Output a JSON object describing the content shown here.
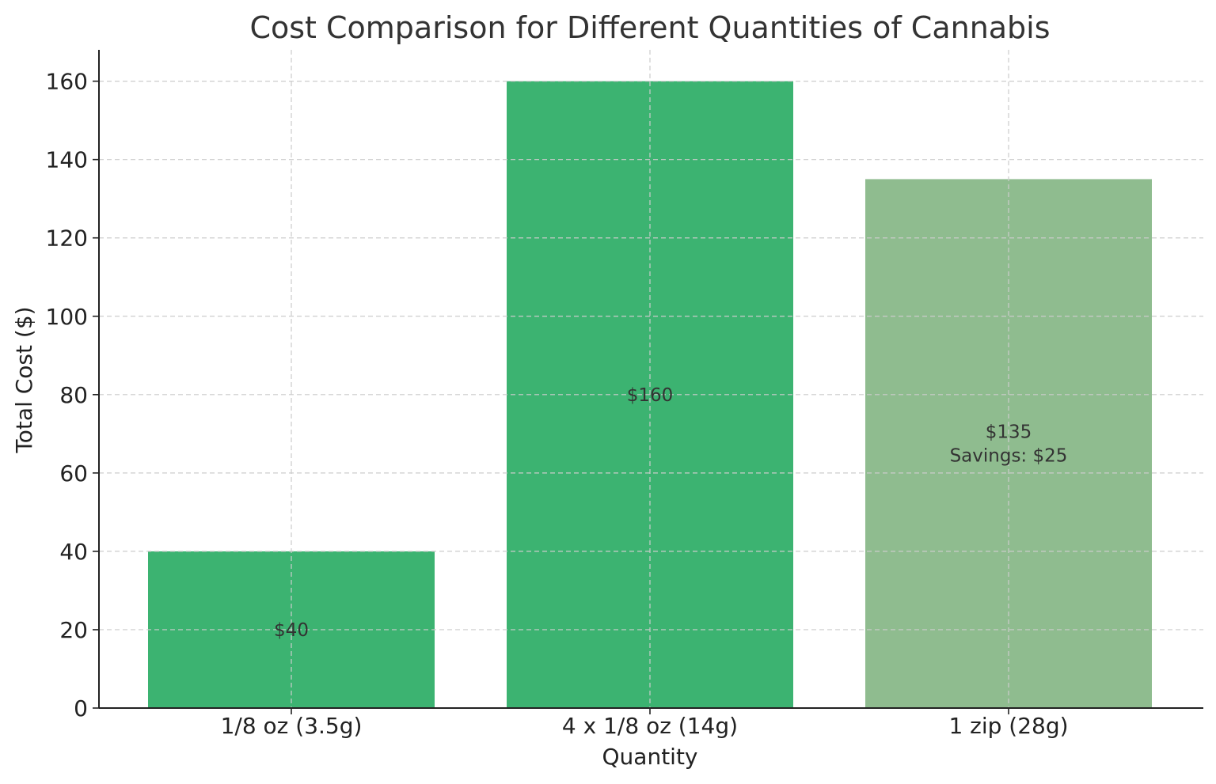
{
  "chart_data": {
    "type": "bar",
    "title": "Cost Comparison for Different Quantities of Cannabis",
    "xlabel": "Quantity",
    "ylabel": "Total Cost ($)",
    "categories": [
      "1/8 oz (3.5g)",
      "4 x 1/8 oz (14g)",
      "1 zip (28g)"
    ],
    "values": [
      40,
      160,
      135
    ],
    "bar_labels": [
      [
        "$40"
      ],
      [
        "$160"
      ],
      [
        "$135",
        "Savings: $25"
      ]
    ],
    "colors": [
      "#3cb371",
      "#3cb371",
      "#8fbc8f"
    ],
    "ylim": [
      0,
      168
    ],
    "yticks": [
      0,
      20,
      40,
      60,
      80,
      100,
      120,
      140,
      160
    ],
    "grid": true
  }
}
